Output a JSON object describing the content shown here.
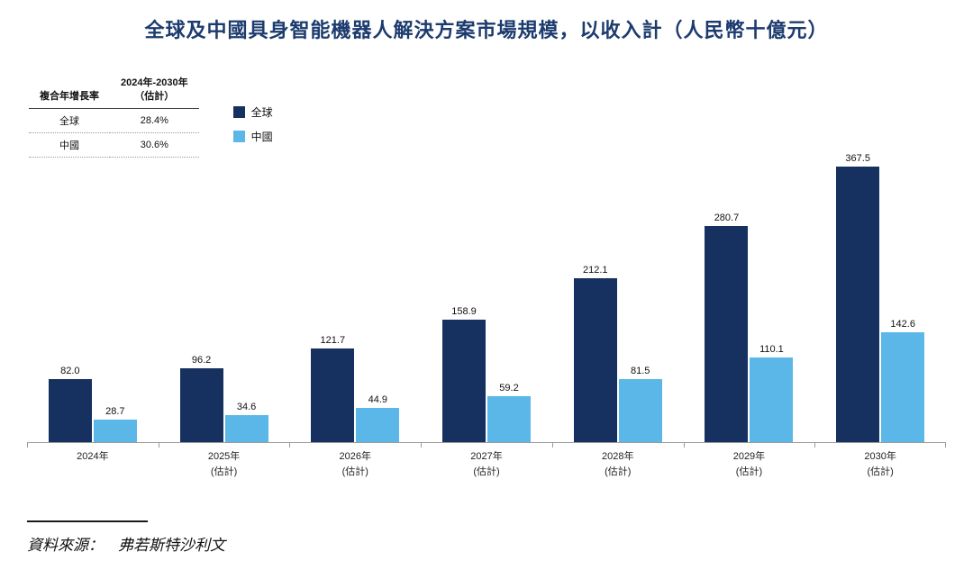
{
  "title": "全球及中國具身智能機器人解決方案市場規模，以收入計（人民幣十億元）",
  "cagr_table": {
    "header_col1": "複合年增長率",
    "header_col2": "2024年-2030年\n（估計）",
    "rows": [
      {
        "label": "全球",
        "value": "28.4%"
      },
      {
        "label": "中國",
        "value": "30.6%"
      }
    ]
  },
  "legend": [
    {
      "label": "全球",
      "color": "#16305f"
    },
    {
      "label": "中國",
      "color": "#5ab7e8"
    }
  ],
  "chart_data": {
    "type": "bar",
    "title": "全球及中國具身智能機器人解決方案市場規模，以收入計（人民幣十億元）",
    "categories": [
      "2024年",
      "2025年\n(估計)",
      "2026年\n(估計)",
      "2027年\n(估計)",
      "2028年\n(估計)",
      "2029年\n(估計)",
      "2030年\n(估計)"
    ],
    "series": [
      {
        "name": "全球",
        "color": "#16305f",
        "values": [
          82.0,
          96.2,
          121.7,
          158.9,
          212.1,
          280.7,
          367.5
        ]
      },
      {
        "name": "中國",
        "color": "#5ab7e8",
        "values": [
          28.7,
          34.6,
          44.9,
          59.2,
          81.5,
          110.1,
          142.6
        ]
      }
    ],
    "xlabel": "",
    "ylabel": "",
    "ylim": [
      0,
      375
    ],
    "grid": false,
    "legend_position": "top-left",
    "value_labels": true
  },
  "source": {
    "label": "資料來源：",
    "name": "弗若斯特沙利文"
  }
}
